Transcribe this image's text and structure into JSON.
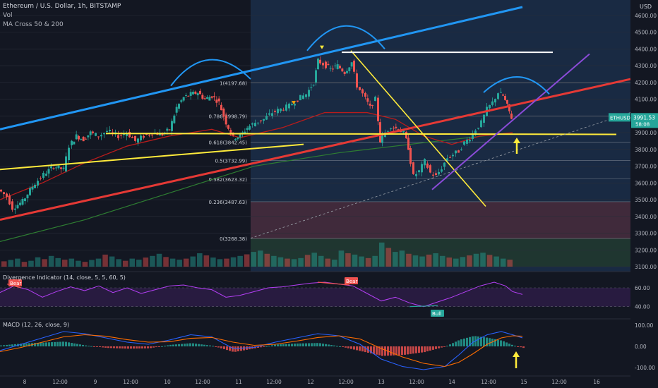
{
  "header": {
    "title": "Ethereum / U.S. Dollar, 1h, BITSTAMP",
    "vol_label": "Vol",
    "ma_label": "MA Cross 50 & 200",
    "currency": "USD"
  },
  "price_tag": {
    "symbol": "ETHUSD",
    "price": "3991.53",
    "countdown": "58:08",
    "color": "#26a69a"
  },
  "colors": {
    "background": "#131722",
    "candle_up": "#26a69a",
    "candle_down": "#ef5350",
    "ma50": "#b71c1c",
    "ma200": "#2e7d32",
    "channel_blue": "#2196f3",
    "trend_red": "#e53935",
    "support_yellow": "#ffeb3b",
    "resistance_white": "#ffffff",
    "rsi_line": "#b43ff5",
    "macd_line": "#2962ff",
    "signal_line": "#ff6d00"
  },
  "chart_data": [
    {
      "type": "candlestick",
      "panel": "price",
      "ylim": [
        3100,
        4650
      ],
      "y_ticks": [
        "4600.00",
        "4500.00",
        "4400.00",
        "4300.00",
        "4200.00",
        "4100.00",
        "4000.00",
        "3900.00",
        "3800.00",
        "3700.00",
        "3600.00",
        "3500.00",
        "3400.00",
        "3300.00",
        "3200.00",
        "3100.00"
      ],
      "x_ticks": [
        "8",
        "12:00",
        "9",
        "12:00",
        "10",
        "12:00",
        "11",
        "12:00",
        "12",
        "12:00",
        "13",
        "12:00",
        "14",
        "12:00",
        "15",
        "12:00",
        "16"
      ],
      "close_points": [
        [
          0,
          3560
        ],
        [
          12,
          3520
        ],
        [
          20,
          3450
        ],
        [
          34,
          3490
        ],
        [
          48,
          3580
        ],
        [
          64,
          3650
        ],
        [
          78,
          3700
        ],
        [
          92,
          3680
        ],
        [
          100,
          3820
        ],
        [
          110,
          3880
        ],
        [
          120,
          3860
        ],
        [
          130,
          3900
        ],
        [
          142,
          3880
        ],
        [
          154,
          3910
        ],
        [
          170,
          3880
        ],
        [
          182,
          3900
        ],
        [
          194,
          3850
        ],
        [
          206,
          3880
        ],
        [
          218,
          3900
        ],
        [
          232,
          3890
        ],
        [
          242,
          3920
        ],
        [
          252,
          4050
        ],
        [
          262,
          4110
        ],
        [
          272,
          4130
        ],
        [
          282,
          4140
        ],
        [
          292,
          4100
        ],
        [
          302,
          4120
        ],
        [
          312,
          4080
        ],
        [
          322,
          3960
        ],
        [
          332,
          3870
        ],
        [
          342,
          3880
        ],
        [
          352,
          3930
        ],
        [
          364,
          3960
        ],
        [
          376,
          3980
        ],
        [
          388,
          4020
        ],
        [
          400,
          4040
        ],
        [
          412,
          4060
        ],
        [
          424,
          4100
        ],
        [
          436,
          4130
        ],
        [
          446,
          4200
        ],
        [
          452,
          4330
        ],
        [
          460,
          4310
        ],
        [
          470,
          4280
        ],
        [
          480,
          4300
        ],
        [
          490,
          4260
        ],
        [
          500,
          4320
        ],
        [
          508,
          4180
        ],
        [
          516,
          4130
        ],
        [
          526,
          4050
        ],
        [
          534,
          4100
        ],
        [
          540,
          3850
        ],
        [
          548,
          3900
        ],
        [
          556,
          3940
        ],
        [
          566,
          3920
        ],
        [
          574,
          3900
        ],
        [
          580,
          3810
        ],
        [
          588,
          3640
        ],
        [
          596,
          3670
        ],
        [
          604,
          3730
        ],
        [
          612,
          3660
        ],
        [
          620,
          3640
        ],
        [
          628,
          3690
        ],
        [
          636,
          3750
        ],
        [
          644,
          3770
        ],
        [
          652,
          3790
        ],
        [
          660,
          3840
        ],
        [
          668,
          3870
        ],
        [
          676,
          3920
        ],
        [
          684,
          3960
        ],
        [
          692,
          4040
        ],
        [
          700,
          4080
        ],
        [
          708,
          4140
        ],
        [
          714,
          4120
        ],
        [
          720,
          4060
        ],
        [
          726,
          3990
        ]
      ],
      "ma50_points": [
        [
          0,
          3500
        ],
        [
          60,
          3600
        ],
        [
          120,
          3720
        ],
        [
          180,
          3820
        ],
        [
          240,
          3880
        ],
        [
          300,
          3920
        ],
        [
          340,
          3870
        ],
        [
          400,
          3930
        ],
        [
          460,
          4020
        ],
        [
          520,
          4020
        ],
        [
          560,
          3980
        ],
        [
          600,
          3880
        ],
        [
          640,
          3830
        ],
        [
          680,
          3880
        ],
        [
          726,
          3900
        ]
      ],
      "ma200_points": [
        [
          0,
          3250
        ],
        [
          120,
          3380
        ],
        [
          240,
          3540
        ],
        [
          360,
          3700
        ],
        [
          480,
          3780
        ],
        [
          600,
          3840
        ],
        [
          726,
          3900
        ]
      ],
      "volumes": [
        20,
        25,
        30,
        18,
        22,
        35,
        28,
        40,
        32,
        26,
        30,
        22,
        18,
        25,
        30,
        45,
        38,
        28,
        22,
        30,
        26,
        34,
        40,
        48,
        36,
        30,
        26,
        30,
        38,
        50,
        42,
        34,
        28,
        30,
        35,
        40,
        46,
        55,
        60,
        48,
        40,
        35,
        30,
        28,
        32,
        44,
        52,
        40,
        30,
        26,
        60,
        50,
        45,
        38,
        32,
        40,
        90,
        70,
        55,
        60,
        48,
        42,
        38,
        45,
        50,
        40,
        34,
        30,
        36,
        42,
        48,
        52,
        44,
        38,
        30,
        26
      ],
      "fib_levels": [
        {
          "label": "1(4197.68)",
          "value": 4197.68
        },
        {
          "label": "0.786(3998.79)",
          "value": 3998.79
        },
        {
          "label": "0.618(3842.45)",
          "value": 3842.45
        },
        {
          "label": "0.5(3732.99)",
          "value": 3732.99
        },
        {
          "label": "0.382(3623.32)",
          "value": 3623.32
        },
        {
          "label": "0.236(3487.63)",
          "value": 3487.63
        },
        {
          "label": "0(3268.38)",
          "value": 3268.38
        }
      ],
      "support_level": 3890,
      "resistance_level": 4380
    },
    {
      "type": "line",
      "panel": "rsi",
      "title": "Divergence Indicator (14, close, 5, 5, 60, 5)",
      "ylim": [
        30,
        75
      ],
      "y_ticks": [
        "60.00",
        "40.00"
      ],
      "labels": [
        "Bear",
        "Bear",
        "Bull"
      ],
      "points": [
        [
          0,
          55
        ],
        [
          20,
          62
        ],
        [
          40,
          58
        ],
        [
          60,
          50
        ],
        [
          80,
          56
        ],
        [
          100,
          61
        ],
        [
          120,
          57
        ],
        [
          140,
          62
        ],
        [
          160,
          55
        ],
        [
          180,
          60
        ],
        [
          200,
          54
        ],
        [
          220,
          58
        ],
        [
          240,
          62
        ],
        [
          260,
          63
        ],
        [
          280,
          60
        ],
        [
          300,
          58
        ],
        [
          320,
          50
        ],
        [
          340,
          52
        ],
        [
          360,
          56
        ],
        [
          380,
          60
        ],
        [
          400,
          61
        ],
        [
          420,
          63
        ],
        [
          440,
          65
        ],
        [
          460,
          66
        ],
        [
          480,
          64
        ],
        [
          500,
          62
        ],
        [
          520,
          54
        ],
        [
          540,
          46
        ],
        [
          560,
          50
        ],
        [
          580,
          44
        ],
        [
          600,
          40
        ],
        [
          620,
          45
        ],
        [
          640,
          50
        ],
        [
          660,
          56
        ],
        [
          680,
          62
        ],
        [
          700,
          66
        ],
        [
          716,
          62
        ],
        [
          726,
          56
        ],
        [
          740,
          53
        ]
      ]
    },
    {
      "type": "line",
      "panel": "macd",
      "title": "MACD (12, 26, close, 9)",
      "ylim": [
        -130,
        120
      ],
      "y_ticks": [
        "100.00",
        "0.00",
        "-100.00"
      ],
      "macd_points": [
        [
          0,
          -20
        ],
        [
          30,
          10
        ],
        [
          60,
          40
        ],
        [
          90,
          70
        ],
        [
          120,
          60
        ],
        [
          150,
          40
        ],
        [
          180,
          20
        ],
        [
          210,
          10
        ],
        [
          240,
          30
        ],
        [
          270,
          55
        ],
        [
          300,
          45
        ],
        [
          330,
          -10
        ],
        [
          360,
          -5
        ],
        [
          390,
          20
        ],
        [
          420,
          40
        ],
        [
          450,
          60
        ],
        [
          480,
          50
        ],
        [
          510,
          10
        ],
        [
          540,
          -60
        ],
        [
          570,
          -95
        ],
        [
          600,
          -110
        ],
        [
          630,
          -95
        ],
        [
          650,
          -40
        ],
        [
          670,
          20
        ],
        [
          690,
          55
        ],
        [
          710,
          70
        ],
        [
          726,
          55
        ],
        [
          740,
          40
        ]
      ],
      "signal_points": [
        [
          0,
          -25
        ],
        [
          30,
          -5
        ],
        [
          60,
          20
        ],
        [
          90,
          45
        ],
        [
          120,
          55
        ],
        [
          150,
          48
        ],
        [
          180,
          32
        ],
        [
          210,
          20
        ],
        [
          240,
          22
        ],
        [
          270,
          38
        ],
        [
          300,
          42
        ],
        [
          330,
          20
        ],
        [
          360,
          5
        ],
        [
          390,
          10
        ],
        [
          420,
          25
        ],
        [
          450,
          42
        ],
        [
          480,
          50
        ],
        [
          510,
          35
        ],
        [
          540,
          -10
        ],
        [
          570,
          -50
        ],
        [
          600,
          -80
        ],
        [
          630,
          -95
        ],
        [
          650,
          -75
        ],
        [
          670,
          -35
        ],
        [
          690,
          10
        ],
        [
          710,
          40
        ],
        [
          726,
          50
        ],
        [
          740,
          48
        ]
      ]
    }
  ]
}
